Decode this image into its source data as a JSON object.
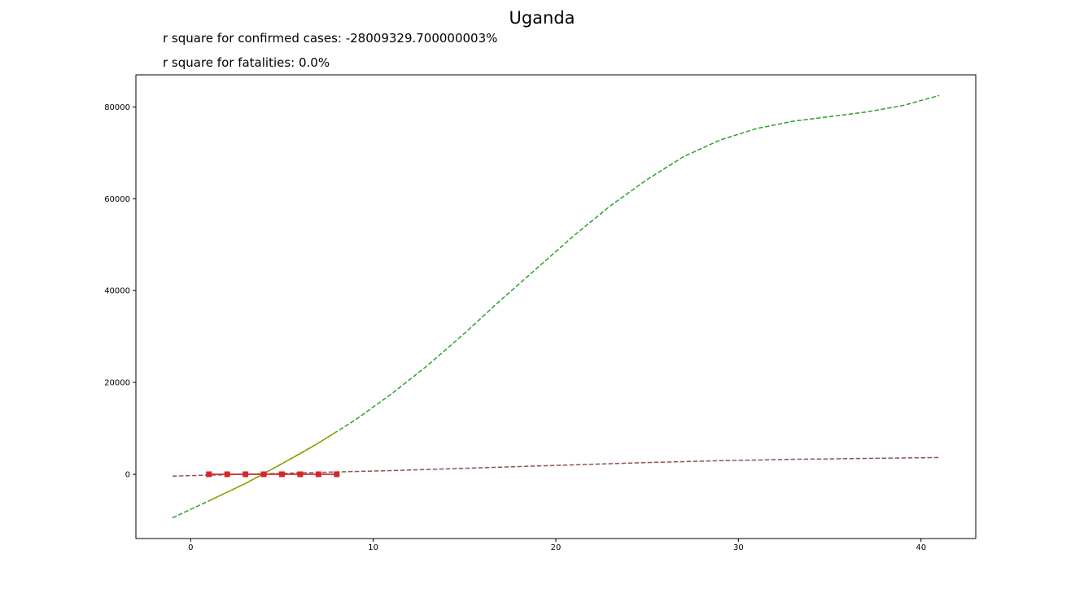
{
  "chart_data": {
    "type": "line",
    "title": "Uganda",
    "annotations": [
      "r square for confirmed cases: -28009329.700000003%",
      "r square for fatalities: 0.0%"
    ],
    "xlabel": "",
    "ylabel": "",
    "xlim": [
      -3,
      43
    ],
    "ylim": [
      -14000,
      87000
    ],
    "x_ticks": [
      0,
      10,
      20,
      30,
      40
    ],
    "y_ticks": [
      0,
      20000,
      40000,
      60000,
      80000
    ],
    "grid": false,
    "legend": "none",
    "series": [
      {
        "color": "#2ca02c",
        "style": "dashed",
        "x": [
          -1,
          1,
          3,
          5,
          7,
          9,
          11,
          13,
          15,
          17,
          19,
          21,
          23,
          25,
          27,
          29,
          31,
          33,
          35,
          37,
          39,
          41
        ],
        "y": [
          -9500,
          -5800,
          -2000,
          2300,
          6800,
          11800,
          17500,
          23800,
          30700,
          38000,
          45000,
          52000,
          58500,
          64200,
          69200,
          72800,
          75300,
          76900,
          77900,
          78900,
          80300,
          82500
        ]
      },
      {
        "color": "#8c564b",
        "style": "dashed",
        "x": [
          -1,
          1,
          3,
          5,
          7,
          9,
          11,
          13,
          15,
          17,
          19,
          21,
          23,
          25,
          27,
          29,
          31,
          33,
          35,
          37,
          39,
          41
        ],
        "y": [
          -400,
          -200,
          0,
          200,
          400,
          600,
          800,
          1050,
          1300,
          1550,
          1800,
          2050,
          2300,
          2550,
          2750,
          2950,
          3100,
          3250,
          3350,
          3450,
          3550,
          3650
        ]
      },
      {
        "color": "#9a9a00",
        "style": "solid",
        "x": [
          1,
          2,
          3,
          4,
          5,
          6,
          7,
          8
        ],
        "y": [
          -5800,
          -3900,
          -2000,
          100,
          2300,
          4500,
          6800,
          9300
        ]
      },
      {
        "color": "#9467bd",
        "style": "solid",
        "x": [
          1,
          2,
          3,
          4,
          5,
          6,
          7,
          8
        ],
        "y": [
          0,
          0,
          0,
          0,
          0,
          0,
          0,
          0
        ]
      },
      {
        "color": "#d62728",
        "style": "markers",
        "marker": "square",
        "x": [
          1,
          2,
          3,
          4,
          5,
          6,
          7,
          8
        ],
        "y": [
          0,
          0,
          0,
          0,
          0,
          0,
          0,
          0
        ]
      }
    ]
  }
}
